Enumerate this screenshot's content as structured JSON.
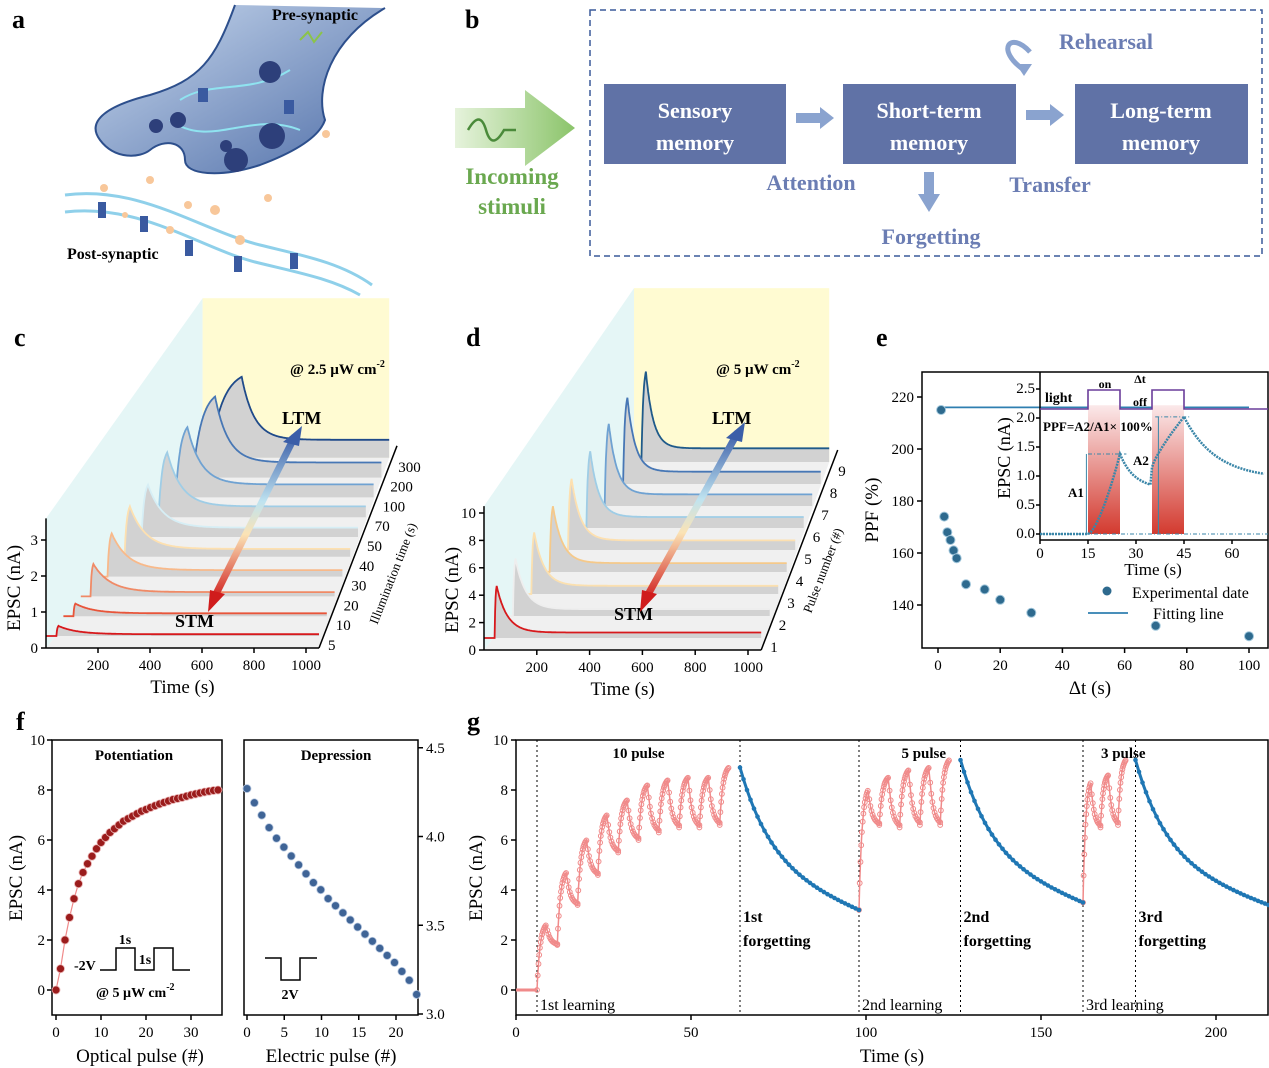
{
  "panel_labels": {
    "a": "a",
    "b": "b",
    "c": "c",
    "d": "d",
    "e": "e",
    "f": "f",
    "g": "g"
  },
  "panel_a": {
    "pre_label": "Pre-synaptic",
    "post_label": "Post-synaptic"
  },
  "panel_b": {
    "input_line1": "Incoming",
    "input_line2": "stimuli",
    "boxes": [
      {
        "line1": "Sensory",
        "line2": "memory"
      },
      {
        "line1": "Short-term",
        "line2": "memory"
      },
      {
        "line1": "Long-term",
        "line2": "memory"
      }
    ],
    "attention": "Attention",
    "forgetting": "Forgetting",
    "transfer": "Transfer",
    "rehearsal": "Rehearsal"
  },
  "colors": {
    "box": "#6072a6",
    "flow_text": "#6b7db3",
    "stimuli_green": "#6aa84f",
    "learning": "#f08a8a",
    "forgetting": "#1f77b4",
    "potentiation": "#9b1c1c",
    "depression": "#3f6496",
    "ppf": "#2f7fb0",
    "light_pulse": "#6a3d9a"
  },
  "chart_data": [
    {
      "panel": "c",
      "type": "line",
      "xlabel": "Time (s)",
      "ylabel": "EPSC (nA)",
      "zlabel": "Illumination time (s)",
      "annotation": "@ 2.5 µW cm",
      "annotation_sup": "-2",
      "ltm": "LTM",
      "stm": "STM",
      "xticks": [
        200,
        400,
        600,
        800,
        1000
      ],
      "yticks": [
        0,
        1,
        2,
        3
      ],
      "series": [
        {
          "z": 5,
          "peak": 0.28,
          "final": 0.05
        },
        {
          "z": 10,
          "peak": 0.35,
          "final": 0.08
        },
        {
          "z": 20,
          "peak": 0.9,
          "final": 0.12
        },
        {
          "z": 30,
          "peak": 1.2,
          "final": 0.18
        },
        {
          "z": 40,
          "peak": 1.4,
          "final": 0.22
        },
        {
          "z": 50,
          "peak": 1.45,
          "final": 0.26
        },
        {
          "z": 70,
          "peak": 1.8,
          "final": 0.3
        },
        {
          "z": 100,
          "peak": 1.95,
          "final": 0.36
        },
        {
          "z": 200,
          "peak": 2.25,
          "final": 0.42
        },
        {
          "z": 300,
          "peak": 2.25,
          "final": 0.5
        }
      ]
    },
    {
      "panel": "d",
      "type": "line",
      "xlabel": "Time (s)",
      "ylabel": "EPSC (nA)",
      "zlabel": "Pulse number (#)",
      "annotation": "@ 5 µW cm",
      "annotation_sup": "-2",
      "ltm": "LTM",
      "stm": "STM",
      "xticks": [
        200,
        400,
        600,
        800,
        1000
      ],
      "yticks": [
        0,
        2,
        4,
        6,
        8,
        10
      ],
      "series": [
        {
          "z": 1,
          "peak": 3.8,
          "final": 0.4
        },
        {
          "z": 2,
          "peak": 4.2,
          "final": 0.5
        },
        {
          "z": 3,
          "peak": 4.5,
          "final": 0.6
        },
        {
          "z": 4,
          "peak": 4.8,
          "final": 0.65
        },
        {
          "z": 5,
          "peak": 5.2,
          "final": 0.7
        },
        {
          "z": 6,
          "peak": 5.6,
          "final": 0.8
        },
        {
          "z": 7,
          "peak": 6.0,
          "final": 0.85
        },
        {
          "z": 8,
          "peak": 6.3,
          "final": 0.9
        },
        {
          "z": 9,
          "peak": 6.6,
          "final": 1.0
        }
      ]
    },
    {
      "panel": "e",
      "type": "scatter",
      "xlabel": "Δt (s)",
      "ylabel": "PPF (%)",
      "xticks": [
        0,
        20,
        40,
        60,
        80,
        100
      ],
      "yticks": [
        140,
        160,
        180,
        200,
        220
      ],
      "xlim": [
        -5,
        105
      ],
      "ylim": [
        123,
        229
      ],
      "x": [
        1,
        2,
        3,
        4,
        5,
        6,
        9,
        15,
        20,
        30,
        70,
        100
      ],
      "y": [
        215,
        174,
        168,
        165,
        161,
        158,
        148,
        146,
        142,
        137,
        132,
        128
      ],
      "legend": [
        "Experimental date",
        "Fitting line"
      ],
      "legend_position": "bottom-right"
    },
    {
      "panel": "e-inset",
      "type": "line",
      "xlabel": "Time (s)",
      "ylabel": "EPSC (nA)",
      "xticks": [
        0,
        15,
        30,
        45,
        60
      ],
      "yticks": [
        0.0,
        0.5,
        1.0,
        1.5,
        2.0,
        2.5
      ],
      "xlim": [
        0,
        70
      ],
      "ylim": [
        -0.07,
        2.7
      ],
      "light_label": "light",
      "on_label": "on",
      "off_label": "off",
      "dt_label": "Δt",
      "formula": "PPF=A2/A1× 100%",
      "a1": "A1",
      "a2": "A2",
      "pulses": [
        [
          15,
          25
        ],
        [
          35,
          45
        ]
      ],
      "A1": 1.38,
      "A2": 2.02
    },
    {
      "panel": "f-left",
      "type": "scatter",
      "title": "Potentiation",
      "xlabel": "Optical pulse (#)",
      "ylabel": "EPSC (nA)",
      "xticks": [
        0,
        10,
        20,
        30
      ],
      "yticks": [
        0,
        2,
        4,
        6,
        8,
        10
      ],
      "ylim": [
        -1,
        10
      ],
      "pulse_v": "-2V",
      "pulse_t1": "1s",
      "pulse_t2": "1s",
      "intensity": "@ 5 µW cm",
      "intensity_sup": "-2",
      "values": [
        0,
        0.85,
        2.0,
        2.9,
        3.65,
        4.25,
        4.7,
        5.05,
        5.35,
        5.65,
        5.9,
        6.1,
        6.3,
        6.45,
        6.6,
        6.75,
        6.85,
        6.95,
        7.05,
        7.15,
        7.22,
        7.3,
        7.37,
        7.44,
        7.5,
        7.56,
        7.62,
        7.66,
        7.7,
        7.75,
        7.8,
        7.84,
        7.88,
        7.92,
        7.95,
        7.98,
        8.0
      ]
    },
    {
      "panel": "f-right",
      "type": "scatter",
      "title": "Depression",
      "xlabel": "Electric pulse (#)",
      "xticks": [
        0,
        5,
        10,
        15,
        20
      ],
      "yticks": [
        3.0,
        3.5,
        4.0,
        4.5
      ],
      "ylim": [
        3.0,
        4.5
      ],
      "pulse_v": "2V",
      "values": [
        4.27,
        4.19,
        4.12,
        4.05,
        3.99,
        3.94,
        3.89,
        3.84,
        3.79,
        3.74,
        3.7,
        3.65,
        3.61,
        3.57,
        3.53,
        3.49,
        3.45,
        3.41,
        3.37,
        3.33,
        3.29,
        3.24,
        3.19,
        3.11
      ]
    },
    {
      "panel": "g",
      "type": "line",
      "xlabel": "Time (s)",
      "ylabel": "EPSC (nA)",
      "xticks": [
        0,
        50,
        100,
        150,
        200
      ],
      "yticks": [
        0,
        2,
        4,
        6,
        8,
        10
      ],
      "xlim": [
        0,
        215
      ],
      "ylim": [
        -1,
        10
      ],
      "dividers": [
        6,
        64,
        98,
        127,
        162,
        177
      ],
      "learning": [
        {
          "label": "10 pulse",
          "phase_label": "1st learning",
          "t": [
            6,
            64
          ],
          "start": 0,
          "peaks": [
            2.6,
            4.7,
            6.0,
            7.0,
            7.6,
            8.2,
            8.4,
            8.5,
            8.5,
            8.9
          ],
          "troughs": [
            1.8,
            3.4,
            4.6,
            5.5,
            6.0,
            6.3,
            6.5,
            6.5,
            6.6
          ]
        },
        {
          "label": "5 pulse",
          "phase_label": "2nd learning",
          "t": [
            98,
            127
          ],
          "start": 3.2,
          "peaks": [
            8.0,
            8.5,
            8.8,
            8.9,
            9.2
          ],
          "troughs": [
            6.6,
            6.5,
            6.6,
            6.6
          ]
        },
        {
          "label": "3 pulse",
          "phase_label": "3rd learning",
          "t": [
            162,
            177
          ],
          "start": 3.5,
          "peaks": [
            8.3,
            8.6,
            9.2
          ],
          "troughs": [
            6.5,
            6.6
          ]
        }
      ],
      "forgetting": [
        {
          "line1": "1st",
          "line2": "forgetting",
          "t": [
            64,
            98
          ],
          "start": 8.9,
          "end": 3.2
        },
        {
          "line1": "2nd",
          "line2": "forgetting",
          "t": [
            127,
            162
          ],
          "start": 9.2,
          "end": 3.5
        },
        {
          "line1": "3rd",
          "line2": "forgetting",
          "t": [
            177,
            215
          ],
          "start": 9.2,
          "end": 3.4
        }
      ]
    }
  ]
}
